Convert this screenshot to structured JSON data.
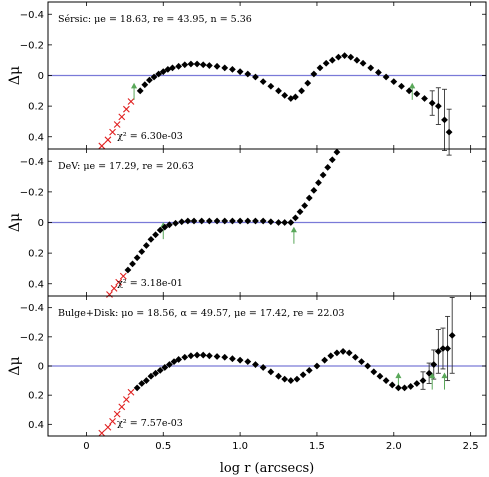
{
  "chart_data": [
    {
      "type": "scatter",
      "panel": "Sersic",
      "annotation": "Sérsic: μe = 18.63, re = 43.95, n = 5.36",
      "chi2_label": "χ² = 6.30e-03",
      "ylabel": "Δμ",
      "xlim": [
        -0.25,
        2.6
      ],
      "ylim": [
        0.48,
        -0.48
      ],
      "yticks": [
        -0.4,
        -0.2,
        0,
        0.2,
        0.4
      ],
      "ytick_labels": [
        "−0.4",
        "−0.2",
        "0",
        "0.2",
        "0.4"
      ],
      "excluded_points": [
        [
          0.1,
          0.46
        ],
        [
          0.14,
          0.42
        ],
        [
          0.17,
          0.37
        ],
        [
          0.2,
          0.32
        ],
        [
          0.23,
          0.27
        ],
        [
          0.26,
          0.22
        ],
        [
          0.29,
          0.17
        ]
      ],
      "points": [
        [
          0.35,
          0.1
        ],
        [
          0.38,
          0.06
        ],
        [
          0.41,
          0.03
        ],
        [
          0.44,
          0.01
        ],
        [
          0.47,
          -0.01
        ],
        [
          0.5,
          -0.025
        ],
        [
          0.53,
          -0.04
        ],
        [
          0.56,
          -0.05
        ],
        [
          0.6,
          -0.06
        ],
        [
          0.64,
          -0.07
        ],
        [
          0.68,
          -0.075
        ],
        [
          0.72,
          -0.075
        ],
        [
          0.76,
          -0.07
        ],
        [
          0.8,
          -0.065
        ],
        [
          0.85,
          -0.06
        ],
        [
          0.9,
          -0.05
        ],
        [
          0.95,
          -0.04
        ],
        [
          1.0,
          -0.025
        ],
        [
          1.05,
          -0.01
        ],
        [
          1.1,
          0.01
        ],
        [
          1.15,
          0.04
        ],
        [
          1.2,
          0.07
        ],
        [
          1.25,
          0.1
        ],
        [
          1.29,
          0.13
        ],
        [
          1.33,
          0.15
        ],
        [
          1.36,
          0.14
        ],
        [
          1.4,
          0.1
        ],
        [
          1.44,
          0.05
        ],
        [
          1.48,
          -0.01
        ],
        [
          1.52,
          -0.05
        ],
        [
          1.56,
          -0.08
        ],
        [
          1.6,
          -0.1
        ],
        [
          1.64,
          -0.12
        ],
        [
          1.68,
          -0.13
        ],
        [
          1.72,
          -0.12
        ],
        [
          1.76,
          -0.1
        ],
        [
          1.8,
          -0.08
        ],
        [
          1.85,
          -0.05
        ],
        [
          1.9,
          -0.02
        ],
        [
          1.95,
          0.01
        ],
        [
          2.0,
          0.04
        ],
        [
          2.05,
          0.07
        ],
        [
          2.1,
          0.1
        ],
        [
          2.15,
          0.12
        ],
        [
          2.2,
          0.15
        ],
        [
          2.25,
          0.18
        ],
        [
          2.29,
          0.2
        ],
        [
          2.33,
          0.29
        ],
        [
          2.36,
          0.37
        ]
      ],
      "errorbars": [
        [
          2.25,
          0.18,
          0.08
        ],
        [
          2.29,
          0.2,
          0.12
        ],
        [
          2.33,
          0.29,
          0.2
        ],
        [
          2.36,
          0.37,
          0.15
        ]
      ],
      "arrows": [
        [
          0.31,
          0.1
        ],
        [
          2.12,
          0.1
        ]
      ]
    },
    {
      "type": "scatter",
      "panel": "DeV",
      "annotation": "DeV: μe = 17.29, re = 20.63",
      "chi2_label": "χ² = 3.18e-01",
      "ylabel": "Δμ",
      "xlim": [
        -0.25,
        2.6
      ],
      "ylim": [
        0.48,
        -0.48
      ],
      "yticks": [
        -0.4,
        -0.2,
        0,
        0.2,
        0.4
      ],
      "ytick_labels": [
        "−0.4",
        "−0.2",
        "0",
        "0.2",
        "0.4"
      ],
      "excluded_points": [
        [
          0.15,
          0.47
        ],
        [
          0.18,
          0.43
        ],
        [
          0.21,
          0.39
        ],
        [
          0.24,
          0.35
        ]
      ],
      "points": [
        [
          0.27,
          0.31
        ],
        [
          0.3,
          0.27
        ],
        [
          0.33,
          0.23
        ],
        [
          0.36,
          0.19
        ],
        [
          0.39,
          0.15
        ],
        [
          0.42,
          0.11
        ],
        [
          0.45,
          0.08
        ],
        [
          0.48,
          0.05
        ],
        [
          0.51,
          0.03
        ],
        [
          0.54,
          0.015
        ],
        [
          0.58,
          0.005
        ],
        [
          0.62,
          -0.005
        ],
        [
          0.66,
          -0.01
        ],
        [
          0.7,
          -0.01
        ],
        [
          0.75,
          -0.01
        ],
        [
          0.8,
          -0.01
        ],
        [
          0.85,
          -0.01
        ],
        [
          0.9,
          -0.01
        ],
        [
          0.95,
          -0.01
        ],
        [
          1.0,
          -0.01
        ],
        [
          1.05,
          -0.01
        ],
        [
          1.1,
          -0.01
        ],
        [
          1.15,
          -0.01
        ],
        [
          1.2,
          -0.005
        ],
        [
          1.25,
          0.0
        ],
        [
          1.29,
          0.0
        ],
        [
          1.33,
          0.0
        ],
        [
          1.36,
          -0.03
        ],
        [
          1.39,
          -0.07
        ],
        [
          1.42,
          -0.11
        ],
        [
          1.45,
          -0.16
        ],
        [
          1.48,
          -0.21
        ],
        [
          1.51,
          -0.26
        ],
        [
          1.54,
          -0.31
        ],
        [
          1.57,
          -0.36
        ],
        [
          1.6,
          -0.41
        ],
        [
          1.63,
          -0.46
        ]
      ],
      "errorbars": [],
      "arrows": [
        [
          0.5,
          0.05
        ],
        [
          1.35,
          0.08
        ]
      ]
    },
    {
      "type": "scatter",
      "panel": "Bulge+Disk",
      "annotation": "Bulge+Disk: μo = 18.56, α = 49.57, μe = 17.42, re = 22.03",
      "chi2_label": "χ² = 7.57e-03",
      "ylabel": "Δμ",
      "xlabel": "log r (arcsecs)",
      "xlim": [
        -0.25,
        2.6
      ],
      "ylim": [
        0.48,
        -0.48
      ],
      "xticks": [
        0,
        0.5,
        1.0,
        1.5,
        2.0,
        2.5
      ],
      "xtick_labels": [
        "0",
        "0.5",
        "1.0",
        "1.5",
        "2.0",
        "2.5"
      ],
      "yticks": [
        -0.4,
        -0.2,
        0,
        0.2,
        0.4
      ],
      "ytick_labels": [
        "−0.4",
        "−0.2",
        "0",
        "0.2",
        "0.4"
      ],
      "excluded_points": [
        [
          0.1,
          0.46
        ],
        [
          0.14,
          0.42
        ],
        [
          0.17,
          0.38
        ],
        [
          0.2,
          0.33
        ],
        [
          0.23,
          0.28
        ],
        [
          0.26,
          0.23
        ],
        [
          0.29,
          0.18
        ]
      ],
      "points": [
        [
          0.33,
          0.15
        ],
        [
          0.36,
          0.12
        ],
        [
          0.39,
          0.1
        ],
        [
          0.42,
          0.07
        ],
        [
          0.45,
          0.05
        ],
        [
          0.48,
          0.03
        ],
        [
          0.51,
          0.01
        ],
        [
          0.54,
          -0.01
        ],
        [
          0.57,
          -0.03
        ],
        [
          0.6,
          -0.045
        ],
        [
          0.64,
          -0.06
        ],
        [
          0.68,
          -0.07
        ],
        [
          0.72,
          -0.075
        ],
        [
          0.76,
          -0.075
        ],
        [
          0.8,
          -0.07
        ],
        [
          0.85,
          -0.065
        ],
        [
          0.9,
          -0.06
        ],
        [
          0.95,
          -0.05
        ],
        [
          1.0,
          -0.04
        ],
        [
          1.05,
          -0.03
        ],
        [
          1.1,
          -0.01
        ],
        [
          1.15,
          0.01
        ],
        [
          1.2,
          0.04
        ],
        [
          1.25,
          0.07
        ],
        [
          1.29,
          0.09
        ],
        [
          1.33,
          0.1
        ],
        [
          1.37,
          0.09
        ],
        [
          1.41,
          0.06
        ],
        [
          1.45,
          0.03
        ],
        [
          1.5,
          0.0
        ],
        [
          1.55,
          -0.04
        ],
        [
          1.59,
          -0.07
        ],
        [
          1.63,
          -0.09
        ],
        [
          1.67,
          -0.1
        ],
        [
          1.71,
          -0.09
        ],
        [
          1.75,
          -0.06
        ],
        [
          1.79,
          -0.03
        ],
        [
          1.83,
          0.0
        ],
        [
          1.87,
          0.04
        ],
        [
          1.91,
          0.07
        ],
        [
          1.95,
          0.1
        ],
        [
          1.99,
          0.13
        ],
        [
          2.03,
          0.15
        ],
        [
          2.07,
          0.15
        ],
        [
          2.11,
          0.14
        ],
        [
          2.15,
          0.12
        ],
        [
          2.19,
          0.1
        ],
        [
          2.23,
          0.05
        ],
        [
          2.26,
          -0.01
        ],
        [
          2.29,
          -0.1
        ],
        [
          2.32,
          -0.12
        ],
        [
          2.35,
          -0.12
        ],
        [
          2.38,
          -0.21
        ]
      ],
      "errorbars": [
        [
          2.19,
          0.1,
          0.06
        ],
        [
          2.23,
          0.05,
          0.07
        ],
        [
          2.26,
          -0.01,
          0.1
        ],
        [
          2.29,
          -0.1,
          0.15
        ],
        [
          2.32,
          -0.12,
          0.14
        ],
        [
          2.35,
          -0.12,
          0.22
        ],
        [
          2.38,
          -0.21,
          0.26
        ]
      ],
      "arrows": [
        [
          2.03,
          0.1
        ],
        [
          2.25,
          0.1
        ],
        [
          2.33,
          0.1
        ]
      ]
    }
  ]
}
